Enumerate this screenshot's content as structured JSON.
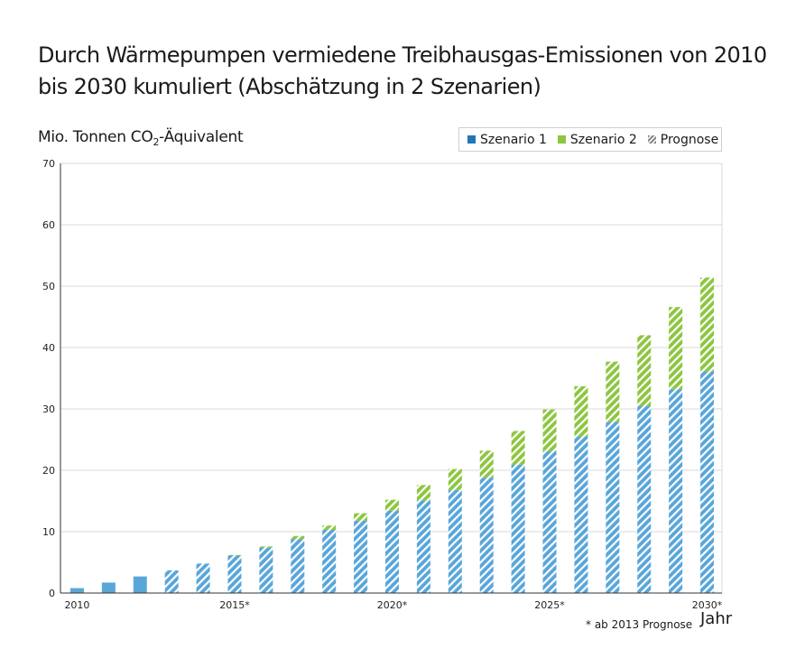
{
  "chart_data": {
    "type": "bar",
    "stacked": true,
    "title_line1": "Durch Wärmepumpen vermiedene Treibhausgas-Emissionen von 2010",
    "title_line2": "bis 2030 kumuliert (Abschätzung in 2 Szenarien)",
    "ylabel_main": "Mio. Tonnen CO",
    "ylabel_sub": "2",
    "ylabel_tail": "-Äquivalent",
    "xlabel": "Jahr",
    "footnote": "* ab 2013 Prognose",
    "ylim": [
      0,
      70
    ],
    "yticks": [
      0,
      10,
      20,
      30,
      40,
      50,
      60,
      70
    ],
    "grid": true,
    "legend_position": "top-right",
    "x": [
      2010,
      2011,
      2012,
      2013,
      2014,
      2015,
      2016,
      2017,
      2018,
      2019,
      2020,
      2021,
      2022,
      2023,
      2024,
      2025,
      2026,
      2027,
      2028,
      2029,
      2030
    ],
    "x_tick_labels": [
      {
        "year": 2010,
        "label": "2010"
      },
      {
        "year": 2015,
        "label": "2015*"
      },
      {
        "year": 2020,
        "label": "2020*"
      },
      {
        "year": 2025,
        "label": "2025*"
      },
      {
        "year": 2030,
        "label": "2030*"
      }
    ],
    "forecast_from": 2013,
    "series": [
      {
        "name": "Szenario 1",
        "color": "#5aa6d8",
        "values": [
          0.8,
          1.7,
          2.7,
          3.7,
          4.8,
          6.1,
          7.4,
          8.8,
          10.3,
          11.8,
          13.4,
          15.1,
          16.8,
          18.8,
          20.9,
          23.1,
          25.5,
          27.9,
          30.5,
          33.2,
          36.1
        ]
      },
      {
        "name": "Szenario 2",
        "color": "#8cc63f",
        "values": [
          0,
          0,
          0,
          0,
          0,
          0.1,
          0.2,
          0.5,
          0.7,
          1.2,
          1.8,
          2.5,
          3.4,
          4.4,
          5.5,
          6.8,
          8.2,
          9.8,
          11.5,
          13.4,
          15.3
        ]
      }
    ],
    "legend": [
      "Szenario 1",
      "Szenario 2",
      "Prognose"
    ],
    "legend_colors": [
      "#1f77b4",
      "#8cc63f",
      "#999999"
    ]
  }
}
